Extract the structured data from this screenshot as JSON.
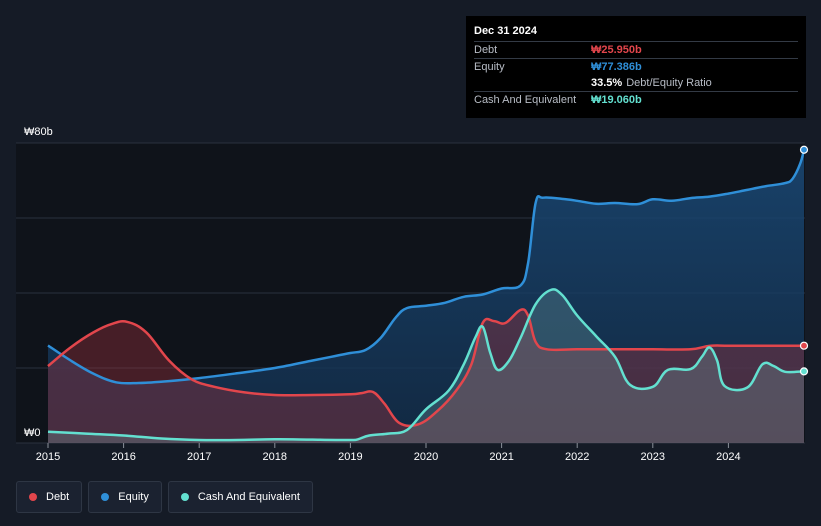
{
  "tooltip": {
    "date": "Dec 31 2024",
    "rows": [
      {
        "label": "Debt",
        "value": "₩25.950b",
        "color": "#e2464c"
      },
      {
        "label": "Equity",
        "value": "₩77.386b",
        "color": "#2f8fd8"
      },
      {
        "label": "",
        "value": "33.5%",
        "suffix": "Debt/Equity Ratio",
        "color": "#ffffff"
      },
      {
        "label": "Cash And Equivalent",
        "value": "₩19.060b",
        "color": "#63e0d0"
      }
    ]
  },
  "legend": [
    {
      "label": "Debt",
      "color": "#e2464c"
    },
    {
      "label": "Equity",
      "color": "#2f8fd8"
    },
    {
      "label": "Cash And Equivalent",
      "color": "#63e0d0"
    }
  ],
  "chart_data": {
    "type": "area",
    "y_top_label": "₩80b",
    "y_bottom_label": "₩0",
    "ylim": [
      0,
      80
    ],
    "xlim": [
      2015.0,
      2025.0
    ],
    "x_ticks": [
      2015,
      2016,
      2017,
      2018,
      2019,
      2020,
      2021,
      2022,
      2023,
      2024
    ],
    "x_tick_labels": [
      "2015",
      "2016",
      "2017",
      "2018",
      "2019",
      "2020",
      "2021",
      "2022",
      "2023",
      "2024"
    ],
    "grid": true,
    "series": [
      {
        "name": "Equity",
        "color": "#2f8fd8",
        "points": [
          [
            2015.0,
            26
          ],
          [
            2015.3,
            22
          ],
          [
            2015.6,
            18.5
          ],
          [
            2015.9,
            16.2
          ],
          [
            2016.2,
            16.0
          ],
          [
            2016.6,
            16.5
          ],
          [
            2017.0,
            17.3
          ],
          [
            2017.5,
            18.6
          ],
          [
            2018.0,
            20.0
          ],
          [
            2018.5,
            22.0
          ],
          [
            2018.8,
            23.2
          ],
          [
            2019.0,
            24.0
          ],
          [
            2019.2,
            24.8
          ],
          [
            2019.4,
            28.0
          ],
          [
            2019.6,
            33.5
          ],
          [
            2019.75,
            36.0
          ],
          [
            2020.0,
            36.6
          ],
          [
            2020.25,
            37.4
          ],
          [
            2020.5,
            39.0
          ],
          [
            2020.75,
            39.6
          ],
          [
            2021.0,
            41.2
          ],
          [
            2021.25,
            42.0
          ],
          [
            2021.35,
            48.0
          ],
          [
            2021.45,
            64.0
          ],
          [
            2021.55,
            65.4
          ],
          [
            2021.8,
            65.1
          ],
          [
            2022.0,
            64.6
          ],
          [
            2022.25,
            63.8
          ],
          [
            2022.5,
            64.0
          ],
          [
            2022.8,
            63.7
          ],
          [
            2023.0,
            65.0
          ],
          [
            2023.25,
            64.6
          ],
          [
            2023.5,
            65.3
          ],
          [
            2023.75,
            65.7
          ],
          [
            2024.0,
            66.5
          ],
          [
            2024.25,
            67.5
          ],
          [
            2024.5,
            68.5
          ],
          [
            2024.75,
            69.3
          ],
          [
            2024.85,
            70.5
          ],
          [
            2024.95,
            74.5
          ],
          [
            2025.0,
            78.2
          ]
        ]
      },
      {
        "name": "Debt",
        "color": "#e2464c",
        "points": [
          [
            2015.0,
            20.5
          ],
          [
            2015.3,
            25.5
          ],
          [
            2015.6,
            29.5
          ],
          [
            2015.85,
            31.8
          ],
          [
            2016.05,
            32.3
          ],
          [
            2016.3,
            29.5
          ],
          [
            2016.6,
            22.0
          ],
          [
            2016.9,
            17.0
          ],
          [
            2017.2,
            15.0
          ],
          [
            2017.6,
            13.5
          ],
          [
            2018.0,
            12.8
          ],
          [
            2018.5,
            12.8
          ],
          [
            2019.0,
            13.0
          ],
          [
            2019.15,
            13.3
          ],
          [
            2019.3,
            13.6
          ],
          [
            2019.45,
            10.5
          ],
          [
            2019.65,
            5.3
          ],
          [
            2019.9,
            5.0
          ],
          [
            2020.15,
            8.5
          ],
          [
            2020.4,
            14.0
          ],
          [
            2020.6,
            21.0
          ],
          [
            2020.75,
            32.0
          ],
          [
            2020.9,
            32.5
          ],
          [
            2021.05,
            32.0
          ],
          [
            2021.25,
            35.5
          ],
          [
            2021.35,
            34.0
          ],
          [
            2021.45,
            27.0
          ],
          [
            2021.6,
            25.0
          ],
          [
            2022.0,
            25.0
          ],
          [
            2022.5,
            25.0
          ],
          [
            2023.0,
            25.0
          ],
          [
            2023.5,
            25.0
          ],
          [
            2023.75,
            25.9
          ],
          [
            2024.0,
            25.95
          ],
          [
            2024.5,
            25.95
          ],
          [
            2025.0,
            25.95
          ]
        ]
      },
      {
        "name": "Cash And Equivalent",
        "color": "#63e0d0",
        "points": [
          [
            2015.0,
            3.0
          ],
          [
            2015.5,
            2.5
          ],
          [
            2016.0,
            2.0
          ],
          [
            2016.5,
            1.2
          ],
          [
            2017.0,
            0.8
          ],
          [
            2017.5,
            0.8
          ],
          [
            2018.0,
            1.0
          ],
          [
            2018.5,
            0.9
          ],
          [
            2019.0,
            0.8
          ],
          [
            2019.1,
            1.0
          ],
          [
            2019.25,
            2.0
          ],
          [
            2019.5,
            2.5
          ],
          [
            2019.75,
            3.5
          ],
          [
            2020.0,
            9.0
          ],
          [
            2020.3,
            14.0
          ],
          [
            2020.5,
            21.0
          ],
          [
            2020.65,
            28.0
          ],
          [
            2020.75,
            31.0
          ],
          [
            2020.85,
            24.0
          ],
          [
            2020.95,
            19.5
          ],
          [
            2021.1,
            22.0
          ],
          [
            2021.25,
            28.0
          ],
          [
            2021.45,
            37.0
          ],
          [
            2021.65,
            40.8
          ],
          [
            2021.8,
            39.5
          ],
          [
            2022.0,
            34.0
          ],
          [
            2022.25,
            28.5
          ],
          [
            2022.5,
            23.0
          ],
          [
            2022.7,
            15.5
          ],
          [
            2023.0,
            15.0
          ],
          [
            2023.2,
            19.5
          ],
          [
            2023.5,
            19.7
          ],
          [
            2023.65,
            23.0
          ],
          [
            2023.75,
            25.5
          ],
          [
            2023.85,
            22.0
          ],
          [
            2023.95,
            15.2
          ],
          [
            2024.25,
            14.8
          ],
          [
            2024.45,
            21.0
          ],
          [
            2024.6,
            20.5
          ],
          [
            2024.75,
            19.0
          ],
          [
            2025.0,
            19.1
          ]
        ]
      }
    ]
  }
}
